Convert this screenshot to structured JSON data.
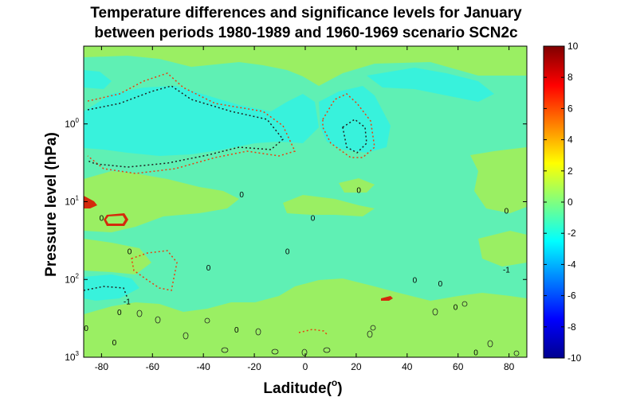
{
  "chart_data": {
    "type": "contour",
    "title_line1": "Temperature differences and significance levels for January",
    "title_line2": "between periods 1980-1989 and 1960-1969 scenario SCN2c",
    "xlabel": "Laditude(",
    "xlabel_sup": "o",
    "xlabel_end": ")",
    "ylabel": "Pressure level (hPa)",
    "x_ticks": [
      "-80",
      "-60",
      "-40",
      "-20",
      "0",
      "20",
      "40",
      "60",
      "80"
    ],
    "x_tick_values": [
      -80,
      -60,
      -40,
      -20,
      0,
      20,
      40,
      60,
      80
    ],
    "xlim": [
      -87,
      87
    ],
    "y_scale": "log",
    "y_reversed": true,
    "ylim": [
      0.1,
      1000
    ],
    "y_ticks": [
      {
        "base": "10",
        "exp": "0"
      },
      {
        "base": "10",
        "exp": "1"
      },
      {
        "base": "10",
        "exp": "2"
      },
      {
        "base": "10",
        "exp": "3"
      }
    ],
    "y_tick_values": [
      1,
      10,
      100,
      1000
    ],
    "colorbar": {
      "ticks": [
        "10",
        "8",
        "6",
        "4",
        "2",
        "0",
        "-2",
        "-4",
        "-6",
        "-8",
        "-10"
      ],
      "tick_values": [
        10,
        8,
        6,
        4,
        2,
        0,
        -2,
        -4,
        -6,
        -8,
        -10
      ],
      "range": [
        -10,
        10
      ],
      "colormap": "jet"
    },
    "fill_colors": {
      "near_zero": "#9aef63",
      "slightly_negative": "#5ff0b4",
      "negative": "#38f2dc",
      "positive_strong": "#d42a0c"
    },
    "contour_labels": [
      {
        "text": "0",
        "x": -80,
        "y": 16
      },
      {
        "text": "0",
        "x": -25,
        "y": 8
      },
      {
        "text": "0",
        "x": 21,
        "y": 7
      },
      {
        "text": "0",
        "x": 3,
        "y": 16
      },
      {
        "text": "0",
        "x": 79,
        "y": 13
      },
      {
        "text": "0",
        "x": -69,
        "y": 43
      },
      {
        "text": "0",
        "x": -38,
        "y": 70
      },
      {
        "text": "0",
        "x": -7,
        "y": 43
      },
      {
        "text": "0",
        "x": 43,
        "y": 100
      },
      {
        "text": "0",
        "x": 53,
        "y": 112
      },
      {
        "text": "-1",
        "x": 79,
        "y": 74
      },
      {
        "text": "-1",
        "x": -70,
        "y": 190
      },
      {
        "text": "0",
        "x": -73,
        "y": 260
      },
      {
        "text": "0",
        "x": -86,
        "y": 420
      },
      {
        "text": "0",
        "x": -75,
        "y": 640
      },
      {
        "text": "0",
        "x": -27,
        "y": 440
      },
      {
        "text": "0",
        "x": 59,
        "y": 225
      },
      {
        "text": "0",
        "x": 67,
        "y": 860
      }
    ],
    "significance_contours": "dotted lines mark significance levels"
  }
}
